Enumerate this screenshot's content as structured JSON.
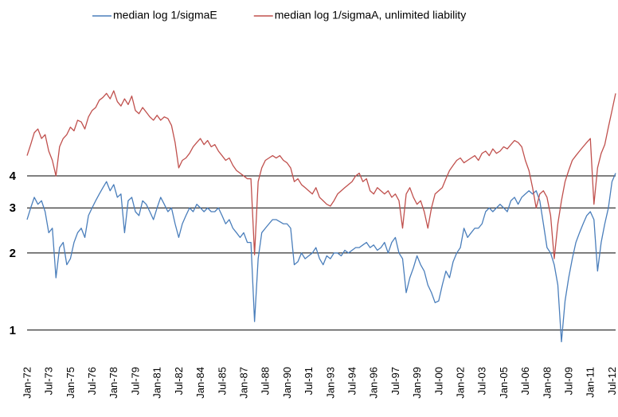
{
  "chart_data": {
    "type": "line",
    "log_scale": true,
    "grid": true,
    "legend": "top",
    "ylim": [
      0.75,
      10
    ],
    "yticks": [
      1,
      2,
      3,
      4
    ],
    "categories": [
      "Jan-72",
      null,
      null,
      null,
      null,
      null,
      "Jul-73",
      null,
      null,
      null,
      null,
      null,
      "Jan-75",
      null,
      null,
      null,
      null,
      null,
      "Jul-76",
      null,
      null,
      null,
      null,
      null,
      "Jan-78",
      null,
      null,
      null,
      null,
      null,
      "Jul-79",
      null,
      null,
      null,
      null,
      null,
      "Jan-81",
      null,
      null,
      null,
      null,
      null,
      "Jul-82",
      null,
      null,
      null,
      null,
      null,
      "Jan-84",
      null,
      null,
      null,
      null,
      null,
      "Jul-85",
      null,
      null,
      null,
      null,
      null,
      "Jan-87",
      null,
      null,
      null,
      null,
      null,
      "Jul-88",
      null,
      null,
      null,
      null,
      null,
      "Jan-90",
      null,
      null,
      null,
      null,
      null,
      "Jul-91",
      null,
      null,
      null,
      null,
      null,
      "Jan-93",
      null,
      null,
      null,
      null,
      null,
      "Jul-94",
      null,
      null,
      null,
      null,
      null,
      "Jan-96",
      null,
      null,
      null,
      null,
      null,
      "Jul-97",
      null,
      null,
      null,
      null,
      null,
      "Jan-99",
      null,
      null,
      null,
      null,
      null,
      "Jul-00",
      null,
      null,
      null,
      null,
      null,
      "Jan-02",
      null,
      null,
      null,
      null,
      null,
      "Jul-03",
      null,
      null,
      null,
      null,
      null,
      "Jan-05",
      null,
      null,
      null,
      null,
      null,
      "Jul-06",
      null,
      null,
      null,
      null,
      null,
      "Jan-08",
      null,
      null,
      null,
      null,
      null,
      "Jul-09",
      null,
      null,
      null,
      null,
      null,
      "Jan-11",
      null,
      null,
      null,
      null,
      null,
      "Jul-12",
      null
    ],
    "series": [
      {
        "name": "median log 1/sigmaE",
        "color": "#4a7ebb",
        "values": [
          2.7,
          3.0,
          3.3,
          3.1,
          3.2,
          2.9,
          2.4,
          2.5,
          1.6,
          2.1,
          2.2,
          1.8,
          1.9,
          2.2,
          2.4,
          2.5,
          2.3,
          2.8,
          3.0,
          3.2,
          3.4,
          3.6,
          3.8,
          3.5,
          3.7,
          3.3,
          3.4,
          2.4,
          3.2,
          3.3,
          2.9,
          2.8,
          3.2,
          3.1,
          2.9,
          2.7,
          3.0,
          3.3,
          3.1,
          2.9,
          3.0,
          2.6,
          2.3,
          2.6,
          2.8,
          3.0,
          2.9,
          3.1,
          3.0,
          2.9,
          3.0,
          2.9,
          2.9,
          3.0,
          2.8,
          2.6,
          2.7,
          2.5,
          2.4,
          2.3,
          2.4,
          2.2,
          2.2,
          1.08,
          1.9,
          2.4,
          2.5,
          2.6,
          2.7,
          2.7,
          2.65,
          2.6,
          2.6,
          2.5,
          1.8,
          1.85,
          2.0,
          1.9,
          1.95,
          2.0,
          2.1,
          1.9,
          1.8,
          1.95,
          1.9,
          2.0,
          2.0,
          1.95,
          2.05,
          2.0,
          2.05,
          2.1,
          2.1,
          2.15,
          2.2,
          2.1,
          2.15,
          2.05,
          2.1,
          2.2,
          2.0,
          2.2,
          2.3,
          2.0,
          1.9,
          1.4,
          1.6,
          1.75,
          1.95,
          1.8,
          1.7,
          1.5,
          1.4,
          1.28,
          1.3,
          1.5,
          1.7,
          1.6,
          1.85,
          2.0,
          2.1,
          2.5,
          2.3,
          2.4,
          2.5,
          2.5,
          2.6,
          2.9,
          3.0,
          2.9,
          3.0,
          3.1,
          3.0,
          2.9,
          3.2,
          3.3,
          3.1,
          3.3,
          3.4,
          3.5,
          3.4,
          3.5,
          3.2,
          2.6,
          2.1,
          2.0,
          1.8,
          1.5,
          0.9,
          1.3,
          1.6,
          1.9,
          2.2,
          2.4,
          2.6,
          2.8,
          2.9,
          2.7,
          1.7,
          2.2,
          2.6,
          3.0,
          3.8,
          4.1
        ]
      },
      {
        "name": "median log 1/sigmaA, unlimited liability",
        "color": "#c0504d",
        "values": [
          4.8,
          5.3,
          5.9,
          6.1,
          5.6,
          5.8,
          5.0,
          4.6,
          4.0,
          5.2,
          5.6,
          5.8,
          6.2,
          6.0,
          6.6,
          6.5,
          6.1,
          6.8,
          7.2,
          7.4,
          7.9,
          8.1,
          8.4,
          8.0,
          8.6,
          7.8,
          7.5,
          8.0,
          7.6,
          8.2,
          7.2,
          7.0,
          7.4,
          7.1,
          6.8,
          6.6,
          6.9,
          6.6,
          6.8,
          6.7,
          6.3,
          5.4,
          4.3,
          4.6,
          4.7,
          4.9,
          5.2,
          5.4,
          5.6,
          5.3,
          5.5,
          5.2,
          5.3,
          5.0,
          4.8,
          4.6,
          4.7,
          4.4,
          4.2,
          4.1,
          4.0,
          3.9,
          3.9,
          1.97,
          3.8,
          4.3,
          4.6,
          4.7,
          4.8,
          4.7,
          4.8,
          4.6,
          4.5,
          4.3,
          3.8,
          3.9,
          3.7,
          3.6,
          3.5,
          3.4,
          3.6,
          3.3,
          3.2,
          3.1,
          3.05,
          3.2,
          3.4,
          3.5,
          3.6,
          3.7,
          3.8,
          4.0,
          4.1,
          3.8,
          3.9,
          3.5,
          3.4,
          3.6,
          3.5,
          3.4,
          3.5,
          3.3,
          3.4,
          3.2,
          2.5,
          3.4,
          3.6,
          3.3,
          3.1,
          3.2,
          2.9,
          2.5,
          3.0,
          3.4,
          3.5,
          3.6,
          3.9,
          4.2,
          4.4,
          4.6,
          4.7,
          4.5,
          4.6,
          4.7,
          4.8,
          4.6,
          4.9,
          5.0,
          4.8,
          5.1,
          4.9,
          5.0,
          5.2,
          5.1,
          5.3,
          5.5,
          5.4,
          5.2,
          4.6,
          4.2,
          3.6,
          3.0,
          3.4,
          3.5,
          3.3,
          2.8,
          1.9,
          2.6,
          3.2,
          3.8,
          4.2,
          4.6,
          4.8,
          5.0,
          5.2,
          5.4,
          5.6,
          3.1,
          4.3,
          4.9,
          5.3,
          6.2,
          7.2,
          8.4
        ]
      }
    ]
  }
}
